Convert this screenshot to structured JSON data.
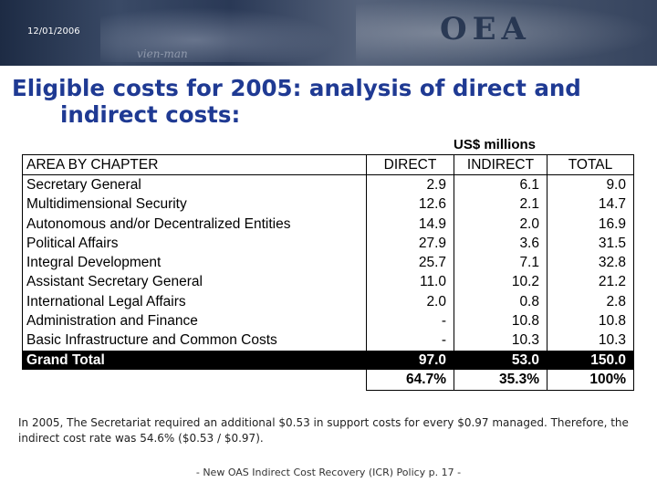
{
  "header": {
    "date": "12/01/2006",
    "logo": "OEA",
    "banner_scribble": "vien-man"
  },
  "title": {
    "line1": "Eligible costs for 2005: analysis of direct and",
    "line2": "indirect costs:"
  },
  "table": {
    "units": "US$ millions",
    "columns": [
      "AREA BY CHAPTER",
      "DIRECT",
      "INDIRECT",
      "TOTAL"
    ],
    "rows": [
      [
        "Secretary General",
        "2.9",
        "6.1",
        "9.0"
      ],
      [
        "Multidimensional Security",
        "12.6",
        "2.1",
        "14.7"
      ],
      [
        "Autonomous and/or Decentralized Entities",
        "14.9",
        "2.0",
        "16.9"
      ],
      [
        "Political Affairs",
        "27.9",
        "3.6",
        "31.5"
      ],
      [
        "Integral Development",
        "25.7",
        "7.1",
        "32.8"
      ],
      [
        "Assistant Secretary General",
        "11.0",
        "10.2",
        "21.2"
      ],
      [
        "International Legal Affairs",
        "2.0",
        "0.8",
        "2.8"
      ],
      [
        "Administration and Finance",
        "-",
        "10.8",
        "10.8"
      ],
      [
        "Basic Infrastructure and Common Costs",
        "-",
        "10.3",
        "10.3"
      ]
    ],
    "grand_total": [
      "Grand Total",
      "97.0",
      "53.0",
      "150.0"
    ],
    "percentages": [
      "64.7%",
      "35.3%",
      "100%"
    ]
  },
  "note": "In 2005, The Secretariat required an additional $0.53 in support costs for every $0.97 managed.  Therefore, the indirect cost rate was 54.6% ($0.53 / $0.97).",
  "source": "-  New OAS Indirect Cost Recovery (ICR) Policy p. 17 -",
  "colors": {
    "title": "#1f3a93",
    "grand_total_bg": "#000000",
    "banner": "#2a3956"
  }
}
